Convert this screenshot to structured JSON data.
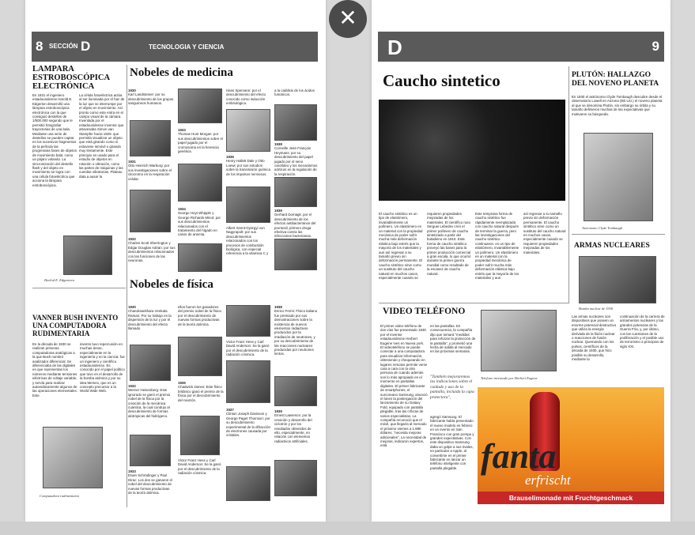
{
  "close_icon": "close-icon",
  "left": {
    "header": {
      "page": "8",
      "section": "SECCIÓN",
      "letter": "D",
      "category": "TECNOLOGIA Y CIENCIA"
    },
    "lampara": {
      "title": "LAMPARA ESTROBOSCÓPICA ELECTRÓNICA",
      "col1": "En 1931 el ingeniero estadounidense Harold E. Edgerton desarrolló una lámpara estroboscópica electrónica con la que consiguió destellos de 1/500.000 segundo que le permitió fotografiar trayectorias de una bala. Mediante una serie de destellos se pueden captar en los sucesivos fragmentos de la película las progresivas fases de objetos de movimiento bala: como un pájaro volando. La sincronización del destello flash y del objeto en movimiento se logra con una célula fotoeléctrica que acciona la lámpara estroboscópica.",
      "col2": "La célula fotoeléctrica actúa al ser iluminada por el haz de la luz que se interrumpe por el objeto en movimiento. Así pronto como este entra en el campo visual de la cámara. Inventada por el estadounidense inventor que atravesaba Simon van Stampfer hacia 1829. que permitía visualizar un objeto que está girando como si estuviese inmóvil o girando muy lentamente. Este principio es usado para el estudio de objetos en rotación o vibración, como las partes de máquinas y las cuerdas vibratorias. Plateau data a ausar la",
      "caption": "Harlod E. Edgarteen"
    },
    "vanner": {
      "title": "VANNER BUSH INVENTO UNA COMPUTADORA RUDIMENTARIA",
      "col1": "En la década de 1930 se realizan primeras computadoras analógicas a la que Bush nombró analizador diferencial. Se diferenciaba de las digitales en que representan los números mediante tensiones eléctricas de voltaje variable, y servía para realizar automáticamente algunos de las operaciones elementales. Este",
      "col2": "invento tuvo repercusión en muchas áreas, especialmente en la ingeniería y en la ciencia: fue un ingeniero y científico estadounidense. Es conocido por el papel político que tuvo en el desarrollo de la bomba atómica y por su idea Memex, que es un concepto precursor a la World Wide Web.",
      "caption": "Computadora rudimentaria"
    },
    "medicina": {
      "title": "Nobeles de medicina",
      "entries": [
        {
          "year": "1930",
          "text": "Karl Landsteiner: por su descubrimiento de los grupos sanguíneos humanos."
        },
        {
          "year": "1931",
          "text": "Otto Heinrich Warburg: por sus investigaciones sobre el citocromo en la respiración celular."
        },
        {
          "year": "1932",
          "text": "Charles Scott Sherrington y Edgar Douglas Adrian: por sus descubrimientos relacionados con las funciones de las neuronas."
        },
        {
          "year": "1933",
          "text": "Thomas Hunt Morgan: por sus descubrimientos sobre el papel jugado por el cromosoma en la herencia genética."
        },
        {
          "year": "1934",
          "text": "George Hoyt Whipple y George Richards Minot: por sus descubrimientos relacionados con el tratamiento del hígado en casos de anemia."
        },
        {
          "year": "",
          "text": "Hans Spemann: por el descubrimiento del efecto conocido como inducción embriológica."
        },
        {
          "year": "1936",
          "text": "Henry Hallett Dale y Otto Loewi: por sus estudios sobre la transmisión química de los impulsos nerviosos."
        },
        {
          "year": "",
          "text": "Albert Szent-Györgyi von Nagyrapolt: por sus descubrimientos relacionados con los procesos de combustión biológica, con especial referencia a la vitamina C y"
        },
        {
          "year": "",
          "text": "a la catálisis de los ácidos fumáricos."
        },
        {
          "year": "1938",
          "text": "Corneille Jean François Heymans: por su descubrimiento del papel jugado por el seno carotídeo y los mecanismos aórticos en la regulación de la respiración."
        },
        {
          "year": "1939",
          "text": "Gerhard Domagk: por el descubrimiento de los efectos antibacterianos del prontosil, primero droga efectiva contra las infecciones bacterianas."
        }
      ]
    },
    "fisica": {
      "title": "Nobeles de física",
      "entries": [
        {
          "year": "1930",
          "text": "Chandrasekhara Venkata Raman: Por su trabajo en la dispersión de la luz y por el descubrimiento del efecto llamado"
        },
        {
          "year": "1932",
          "text": "Werner Heisenberg: Este ignorado se ganó el premio nobel de la física por la creación de la mecánica cuántica, la cual condujo al descubrimiento de formas alotrópicas del hidrógeno."
        },
        {
          "year": "1933",
          "text": "Erwin Schrödinger y Paul Dirac: Los dos se ganaron el nobel del descubrimiento de nuevas formas productivas de la teoría atómica."
        },
        {
          "year": "",
          "text": "ellos fueron los ganadores del premio nobel de la física por el descubrimiento de nuevas formas productivas de la teoría atómica."
        },
        {
          "year": "1935",
          "text": "Chadwick James: Este físico británico ganó el premio de la física por el descubrimiento del neutrón."
        },
        {
          "year": "1936",
          "text": "Victor Franz Hess y Carl David Anderson: Se la ganó por el descubrimiento de la radiación cósmica."
        },
        {
          "year": "1937",
          "text": "Clinton Joseph Davisson y George Paget Thomson: por su descubrimiento experimental de la difracción de electrones causada por cristales."
        },
        {
          "year": "1938",
          "text": "Enrico Fermi: Físico italiano fue premiado por sus demostraciones sobre la existencia de nuevos elementos radiactivos producidos por la irradiación de neutrones, y por su descubrimiento de las reacciones nucleares producidas por neutrones lentos."
        },
        {
          "year": "1939",
          "text": "Ernest Lawrence: por la creación y desarrollo del ciclotrón y por los resultados obtenidos de ello, especialmente, en relación con elementos radiactivos artificiales."
        }
      ]
    }
  },
  "right": {
    "header": {
      "letter": "D",
      "page": "9"
    },
    "caucho": {
      "title": "Caucho sintetico",
      "cols": [
        "El caucho sintético es un tipo de elastómero, invariablemente un polímero. Un elastómero es un material con la propiedad mecánica de poder sufrir mucha más deformación elástica bajo estrés que la mayoría de los materiales y aun así regresar a su tamaño previo sin deformación permanente. El caucho sintético sirve como un sustituto del caucho natural en muchos casos, especialmente cuando se",
        "requieren propiedades mejoradas de los materiales. El científico ruso Serguei Lebedev creó el primer polímero de caucho sintetizado a partir del butadieno en 1910. Esta forma de caucho sintético proveyó las bases para la primer producción comercial a gran escala, lo que ocurrió durante la primer guerra mundial como resultado de la escasez de caucho natural.",
        "Este temprana forma de caucho sintético fue rápidamente reemplazada con caucho natural después de terminar la guerra, pero las investigaciones del caucho sintético continuaron. es un tipo de elastómero, invariablemente un polímero. Un elastómero es un material con la propiedad mecánica de poder sufrir mucha más deformación elástica bajo estrés que la mayoría de los materiales y aun",
        "así regresar a su tamaño previo sin deformación permanente. El caucho sintético sirve como un sustituto del caucho natural en muchos casos, especialmente cuando se requieren propiedades mejoradas de los materiales."
      ]
    },
    "pluton": {
      "title": "PLUTÓN: HALLAZGO DEL NOVENO PLANETA",
      "text": "En 1930 el astrónomo Clyde Tombaugh descubre desde el observatorio Lowell en Arizona (EE.UU.) el noveno planeta al que se denomina Plutón, sin embargo su órbita y su tamaño definieron muchas de las expectativas que motivaron su búsqueda.",
      "caption": "Astronomo Clyde Tombaugh"
    },
    "nucleares": {
      "title": "ARMAS NUCLEARES",
      "caption": "Bomba nuclear de 1930",
      "col1": "Las armas nucleares son dispositivos que poseen un enorme potencial destructivo que utiliza la energía derivada de la fisión nuclear o reacciones de fusión nuclear. Quemando con los pulsos, científicos de la década de 1930, que hizo posible su desarrollo, mediante la",
      "col2": "continuación de la carrera de armamentos nucleares y las grandes potencias de la Guerra Fría, y, por último, con las cuestiones de la proliferación y el posible uso de terrorismo a principios de siglo XXI."
    },
    "video": {
      "title": "VIDEO TELÉFONO",
      "col1": "El primer video teléfono de dos vías fue presentado 1930 por el inventor estadounidense Herbert Eugene Ives en Nueva york. El videoteléfono se puede conectar a una computadora para visualizar información, obteniendo y chequeando en lugares remotos permite verse cara a cara con la otra persona de cuando además son lo más apropiado en el momento en pantallas digitales. El primer fabricante de smartphones, el surcoreano Samsung, anunció el lunes la postergación del lanzamiento de su Galaxy Fold, equipado con pantalla plegable, tras las críticas de varios especialistas. La compañía reconoció que el móvil, que llegaría al mercado el próximo viernes a 1.980 dólares, \"necesita mejoras adicionales\". La necesidad de mejoras, indicaron expertos, está",
      "col2": "en las pantallas. En consecuencia, la compañía dijo que tomará \"medidas para reforzar la protección de la pantalla\", y prometió una fecha de salida al mercado en las próximas semanas.",
      "quote": "\"También mejoraremos las indicaciones sobre el cuidado y uso de la pantalla, incluida la capa protectora\",",
      "col2b": "agregó Samsung. El fabricante había presentado el nuevo modelo en febrero en un evento en San Francisco con gran pompa y grandes expectativas. Con este dispositivo Samsung daba un golpe a sus rivales, en particular a Apple, al convertirse en el primer fabricante en lanzar un teléfono inteligente con pantalla plegable.",
      "caption": "Telefono inventado por Herbert Eugene"
    },
    "fanta": {
      "brand": "fanta",
      "tagline": "erfrischt",
      "sub": "Brauselimonade mit Fruchtgeschmack"
    }
  },
  "colors": {
    "bar": "#5a5a5a",
    "fanta_red": "#c62828",
    "fanta_orange": "#f08a1e"
  }
}
